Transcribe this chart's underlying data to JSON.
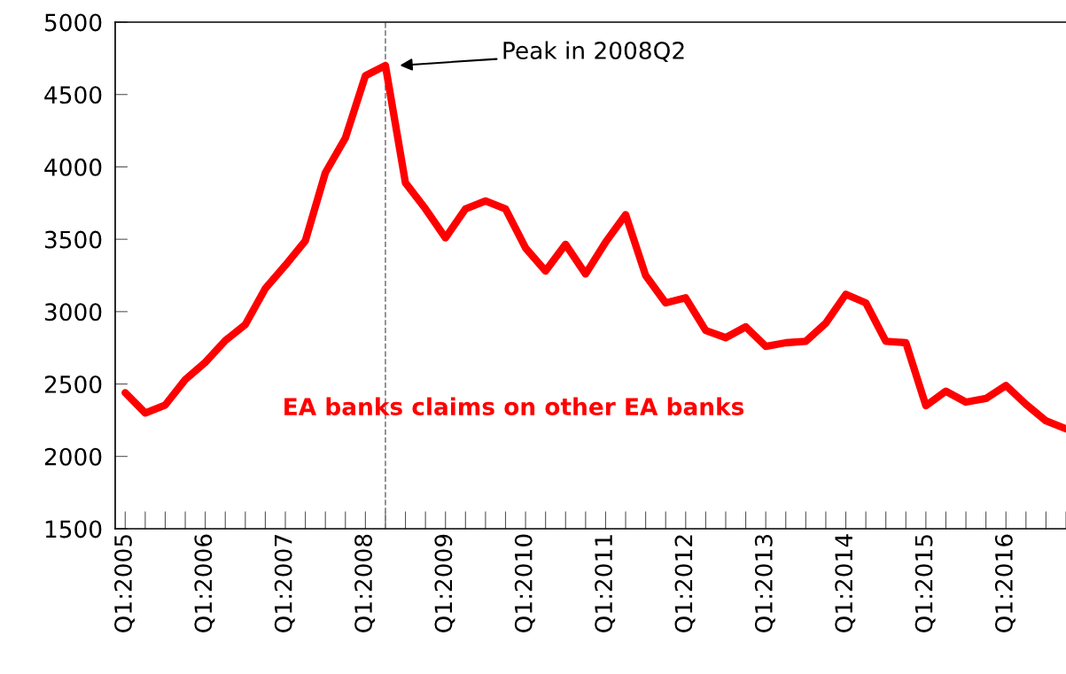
{
  "chart_data": {
    "type": "line",
    "categories": [
      "Q1:2005",
      null,
      null,
      null,
      "Q1:2006",
      null,
      null,
      null,
      "Q1:2007",
      null,
      null,
      null,
      "Q1:2008",
      null,
      null,
      null,
      "Q1:2009",
      null,
      null,
      null,
      "Q1:2010",
      null,
      null,
      null,
      "Q1:2011",
      null,
      null,
      null,
      "Q1:2012",
      null,
      null,
      null,
      "Q1:2013",
      null,
      null,
      null,
      "Q1:2014",
      null,
      null,
      null,
      "Q1:2015",
      null,
      null,
      null,
      "Q1:2016",
      null,
      null,
      null
    ],
    "series": [
      {
        "name": "EA banks claims on other EA banks",
        "color": "#ff0000",
        "values": [
          2440,
          2300,
          2355,
          2530,
          2650,
          2800,
          2910,
          3160,
          3320,
          3490,
          3960,
          4200,
          4630,
          4700,
          3890,
          3710,
          3510,
          3710,
          3765,
          3710,
          3440,
          3280,
          3465,
          3260,
          3480,
          3670,
          3250,
          3060,
          3095,
          2870,
          2820,
          2895,
          2760,
          2785,
          2795,
          2920,
          3120,
          3060,
          2795,
          2785,
          2350,
          2450,
          2375,
          2400,
          2490,
          2360,
          2245,
          2190
        ]
      }
    ],
    "ylim": [
      1500,
      5000
    ],
    "yticks": [
      1500,
      2000,
      2500,
      3000,
      3500,
      4000,
      4500,
      5000
    ],
    "annotations": [
      "Peak in 2008Q2"
    ],
    "legend": false,
    "marker": "none",
    "line_style": "solid"
  }
}
